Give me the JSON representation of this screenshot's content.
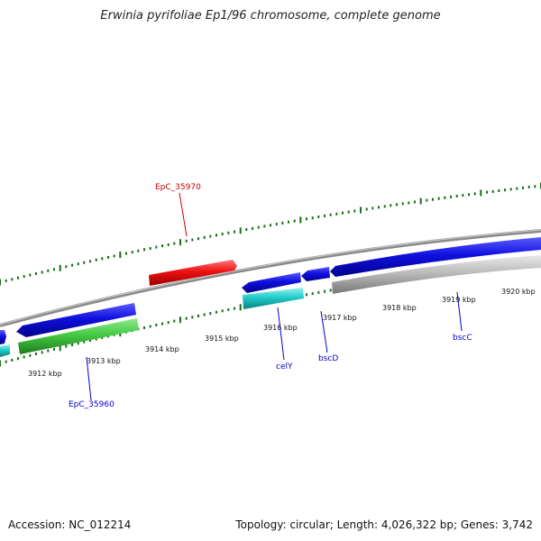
{
  "title": "Erwinia pyrifoliae Ep1/96 chromosome, complete genome",
  "footer": {
    "accession": "Accession: NC_012214",
    "summary": "Topology: circular; Length: 4,026,322 bp; Genes: 3,742"
  },
  "ticks": [
    {
      "label": "3912 kbp"
    },
    {
      "label": "3913 kbp"
    },
    {
      "label": "3914 kbp"
    },
    {
      "label": "3915 kbp"
    },
    {
      "label": "3916 kbp"
    },
    {
      "label": "3917 kbp"
    },
    {
      "label": "3918 kbp"
    },
    {
      "label": "3919 kbp"
    },
    {
      "label": "3920 kbp"
    }
  ],
  "gene_labels": [
    {
      "name": "EpC_35970",
      "color": "#cc0000"
    },
    {
      "name": "EpC_35960",
      "color": "#0000cc"
    },
    {
      "name": "celY",
      "color": "#0000cc"
    },
    {
      "name": "bscD",
      "color": "#0000cc"
    },
    {
      "name": "bscC",
      "color": "#0000cc"
    }
  ],
  "colors": {
    "backbone": "#8a8a8a",
    "tick": "#1a6b1a",
    "gene_blue": "#1010e0",
    "gene_green": "#44cc44",
    "gene_red": "#ee1111",
    "gene_cyan": "#22cccc",
    "gene_gray": "#bbbbbb"
  }
}
